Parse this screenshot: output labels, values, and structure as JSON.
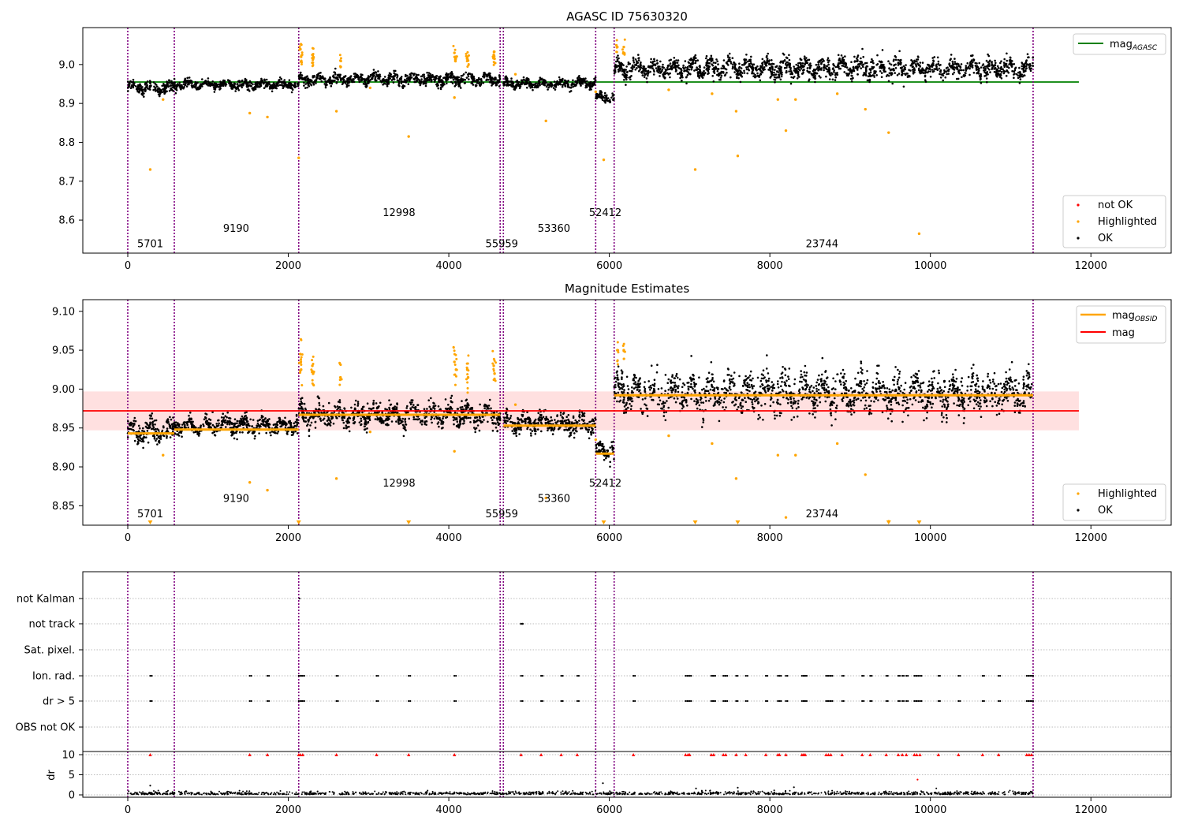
{
  "chart_data": [
    {
      "type": "scatter",
      "title": "AGASC ID 75630320",
      "xlabel": "",
      "ylabel": "",
      "xlim": [
        -560,
        13000
      ],
      "ylim": [
        8.515,
        9.095
      ],
      "xticks": [
        "0",
        "2000",
        "4000",
        "6000",
        "8000",
        "10000",
        "12000"
      ],
      "yticks": [
        "8.6",
        "8.7",
        "8.8",
        "8.9",
        "9.0"
      ],
      "legend_upper": {
        "position": "top-right",
        "entries": [
          {
            "label": "mag",
            "subscript": "AGASC",
            "color": "#008000",
            "marker": "line"
          }
        ]
      },
      "legend_lower": {
        "position": "bottom-right",
        "entries": [
          {
            "label": "not OK",
            "color": "#ff0000",
            "marker": "dot"
          },
          {
            "label": "Highlighted",
            "color": "#ffa500",
            "marker": "dot"
          },
          {
            "label": "OK",
            "color": "#000000",
            "marker": "dot"
          }
        ]
      },
      "mag_agasc": {
        "value": 8.955,
        "x_range": [
          0,
          11850
        ]
      },
      "obsid_boundaries": [
        0,
        580,
        2130,
        4640,
        4680,
        5830,
        6060,
        11280
      ],
      "obsid_labels": [
        {
          "text": "5701",
          "x": 280,
          "y": 8.54
        },
        {
          "text": "9190",
          "x": 1350,
          "y": 8.58
        },
        {
          "text": "12998",
          "x": 3380,
          "y": 8.62
        },
        {
          "text": "55959",
          "x": 4660,
          "y": 8.54
        },
        {
          "text": "53360",
          "x": 5310,
          "y": 8.58
        },
        {
          "text": "52412",
          "x": 5950,
          "y": 8.62
        },
        {
          "text": "23744",
          "x": 8650,
          "y": 8.54
        }
      ],
      "ok_segments": [
        {
          "x": [
            0,
            580
          ],
          "mean": 8.941,
          "spread": 0.012
        },
        {
          "x": [
            580,
            2130
          ],
          "mean": 8.948,
          "spread": 0.009
        },
        {
          "x": [
            2130,
            4640
          ],
          "mean": 8.962,
          "spread": 0.012
        },
        {
          "x": [
            4680,
            5830
          ],
          "mean": 8.951,
          "spread": 0.01
        },
        {
          "x": [
            5830,
            6060
          ],
          "mean": 8.915,
          "spread": 0.01
        },
        {
          "x": [
            6060,
            11280
          ],
          "mean": 8.99,
          "spread": 0.02
        }
      ],
      "highlighted_points": [
        [
          280,
          8.73
        ],
        [
          440,
          8.91
        ],
        [
          1520,
          8.875
        ],
        [
          1740,
          8.865
        ],
        [
          2130,
          8.76
        ],
        [
          2600,
          8.88
        ],
        [
          3500,
          8.815
        ],
        [
          4070,
          8.915
        ],
        [
          5210,
          8.855
        ],
        [
          5830,
          8.93
        ],
        [
          5930,
          8.755
        ],
        [
          6740,
          8.935
        ],
        [
          7070,
          8.73
        ],
        [
          7280,
          8.925
        ],
        [
          7580,
          8.88
        ],
        [
          7600,
          8.765
        ],
        [
          8100,
          8.91
        ],
        [
          8200,
          8.83
        ],
        [
          8320,
          8.91
        ],
        [
          8840,
          8.925
        ],
        [
          9190,
          8.885
        ],
        [
          9480,
          8.825
        ],
        [
          9860,
          8.565
        ],
        [
          2150,
          9.04
        ],
        [
          2160,
          9.02
        ],
        [
          2300,
          9.025
        ],
        [
          2310,
          9.015
        ],
        [
          2650,
          9.01
        ],
        [
          4070,
          9.03
        ],
        [
          4090,
          9.02
        ],
        [
          4230,
          9.02
        ],
        [
          4240,
          9.01
        ],
        [
          4560,
          9.025
        ],
        [
          4570,
          9.015
        ],
        [
          6100,
          9.045
        ],
        [
          6180,
          9.045
        ],
        [
          4830,
          8.975
        ],
        [
          3020,
          8.94
        ]
      ]
    },
    {
      "type": "scatter",
      "title": "Magnitude Estimates",
      "xlabel": "",
      "ylabel": "",
      "xlim": [
        -560,
        13000
      ],
      "ylim": [
        8.825,
        9.115
      ],
      "xticks": [
        "0",
        "2000",
        "4000",
        "6000",
        "8000",
        "10000",
        "12000"
      ],
      "yticks": [
        "8.85",
        "8.90",
        "8.95",
        "9.00",
        "9.05",
        "9.10"
      ],
      "legend_upper": {
        "position": "top-right",
        "entries": [
          {
            "label": "mag",
            "subscript": "OBSID",
            "color": "#ffa500",
            "marker": "line"
          },
          {
            "label": "mag",
            "subscript": "",
            "color": "#ff0000",
            "marker": "line"
          }
        ]
      },
      "legend_lower": {
        "position": "bottom-right",
        "entries": [
          {
            "label": "Highlighted",
            "color": "#ffa500",
            "marker": "dot"
          },
          {
            "label": "OK",
            "color": "#000000",
            "marker": "dot"
          }
        ]
      },
      "mag": {
        "value": 8.972,
        "band": [
          8.947,
          8.997
        ],
        "x_range": [
          -560,
          11850
        ]
      },
      "mag_obsid": [
        {
          "x": [
            0,
            580
          ],
          "value": 8.943
        },
        {
          "x": [
            580,
            2130
          ],
          "value": 8.948
        },
        {
          "x": [
            2130,
            4640
          ],
          "value": 8.967
        },
        {
          "x": [
            4680,
            5830
          ],
          "value": 8.953
        },
        {
          "x": [
            5830,
            6060
          ],
          "value": 8.917
        },
        {
          "x": [
            6060,
            11280
          ],
          "value": 8.992
        }
      ],
      "obsid_labels": [
        {
          "text": "5701",
          "x": 280,
          "y": 8.84
        },
        {
          "text": "9190",
          "x": 1350,
          "y": 8.86
        },
        {
          "text": "12998",
          "x": 3380,
          "y": 8.88
        },
        {
          "text": "55959",
          "x": 4660,
          "y": 8.84
        },
        {
          "text": "53360",
          "x": 5310,
          "y": 8.86
        },
        {
          "text": "52412",
          "x": 5950,
          "y": 8.88
        },
        {
          "text": "23744",
          "x": 8650,
          "y": 8.84
        }
      ],
      "offscale_markers_x": [
        280,
        2130,
        3500,
        5930,
        7070,
        7600,
        9480,
        9860
      ]
    },
    {
      "type": "scatter",
      "title": "",
      "xlim": [
        -560,
        13000
      ],
      "xticks": [
        "0",
        "2000",
        "4000",
        "6000",
        "8000",
        "10000",
        "12000"
      ],
      "flag_rows": [
        "not Kalman",
        "not track",
        "Sat. pixel.",
        "Ion. rad.",
        "dr > 5",
        "OBS not OK"
      ],
      "dr_ylabel": "dr",
      "dr_yticks": [
        "0",
        "5",
        "10"
      ],
      "flag_x": [
        280,
        1520,
        1740,
        2130,
        2150,
        2180,
        2600,
        3100,
        3500,
        4070,
        4900,
        5150,
        5400,
        5600,
        6300,
        6950,
        6980,
        7000,
        7270,
        7300,
        7420,
        7450,
        7580,
        7700,
        7950,
        8100,
        8120,
        8200,
        8400,
        8420,
        8440,
        8700,
        8730,
        8760,
        8900,
        9150,
        9250,
        9450,
        9600,
        9650,
        9700,
        9800,
        9830,
        9870,
        10100,
        10350,
        10650,
        10850,
        11200,
        11230,
        11260
      ],
      "not_kalman_x": [
        2140
      ],
      "not_track_x": [
        4900,
        4920
      ],
      "dr_outliers": [
        [
          280,
          2.3
        ],
        [
          9840,
          3.8
        ],
        [
          5920,
          2.9
        ],
        [
          7080,
          1.6
        ],
        [
          7600,
          1.8
        ],
        [
          8300,
          1.9
        ]
      ]
    }
  ]
}
